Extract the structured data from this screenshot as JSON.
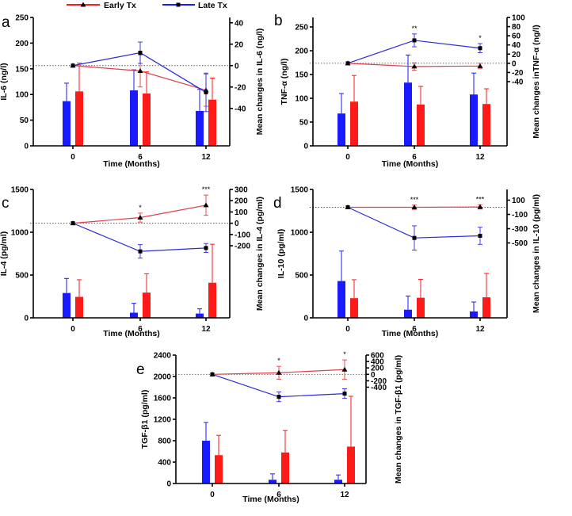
{
  "legend": {
    "early_label": "Early Tx",
    "late_label": "Late Tx",
    "early_color": "#ff1a1a",
    "late_color": "#1a1aff",
    "early_line_color": "#e0404a",
    "late_line_color": "#2a2ad8"
  },
  "chart_data": [
    {
      "type": "bar+line",
      "panel_label": "a",
      "xlabel": "Time (Months)",
      "ylabel": "IL-6 (ng/l)",
      "y2label": "Mean changes in IL-6 (ng/l)",
      "categories": [
        "0",
        "6",
        "12"
      ],
      "ylim": [
        0,
        250
      ],
      "yticks": [
        "0",
        "50",
        "100",
        "150",
        "200",
        "250"
      ],
      "y2lim": [
        -75,
        45
      ],
      "y2ticks": [
        "-40",
        "-20",
        "0",
        "20",
        "40"
      ],
      "bars": {
        "late": {
          "values": [
            87,
            108,
            68
          ],
          "errors": [
            35,
            40,
            42
          ]
        },
        "early": {
          "values": [
            106,
            102,
            90
          ],
          "errors": [
            55,
            42,
            42
          ]
        }
      },
      "lines": {
        "early": {
          "values": [
            0,
            -5,
            -23
          ],
          "errors": [
            0,
            15,
            15
          ]
        },
        "late": {
          "values": [
            0,
            12,
            -25
          ],
          "errors": [
            0,
            10,
            18
          ]
        }
      },
      "significance": {
        "early": [
          "",
          "",
          ""
        ],
        "late": [
          "",
          "",
          ""
        ]
      }
    },
    {
      "type": "bar+line",
      "panel_label": "b",
      "xlabel": "Time (Months)",
      "ylabel": "TNF-α (ng/l)",
      "y2label": "Mean changes inTNF-α (ng/l)",
      "categories": [
        "0",
        "6",
        "12"
      ],
      "ylim": [
        0,
        270
      ],
      "yticks": [
        "0",
        "50",
        "100",
        "150",
        "200",
        "250"
      ],
      "y2lim": [
        -180,
        100
      ],
      "y2ticks": [
        "-40",
        "-20",
        "0",
        "20",
        "40",
        "60",
        "80",
        "100"
      ],
      "bars": {
        "late": {
          "values": [
            68,
            133,
            108
          ],
          "errors": [
            42,
            58,
            45
          ]
        },
        "early": {
          "values": [
            93,
            87,
            88
          ],
          "errors": [
            55,
            38,
            32
          ]
        }
      },
      "lines": {
        "early": {
          "values": [
            0,
            -7,
            -6
          ],
          "errors": [
            0,
            8,
            6
          ]
        },
        "late": {
          "values": [
            0,
            50,
            33
          ],
          "errors": [
            0,
            14,
            10
          ]
        }
      },
      "significance": {
        "early": [
          "",
          "",
          ""
        ],
        "late": [
          "",
          "**",
          "*"
        ]
      }
    },
    {
      "type": "bar+line",
      "panel_label": "c",
      "xlabel": "Time (Months)",
      "ylabel": "IL-4 (pg/ml)",
      "y2label": "Mean changes in IL-4 (pg/ml)",
      "categories": [
        "0",
        "6",
        "12"
      ],
      "ylim": [
        0,
        1500
      ],
      "yticks": [
        "0",
        "500",
        "1000",
        "1500"
      ],
      "y2lim": [
        -840,
        300
      ],
      "y2ticks": [
        "-200",
        "-100",
        "0",
        "100",
        "200",
        "300"
      ],
      "bars": {
        "late": {
          "values": [
            290,
            60,
            50
          ],
          "errors": [
            170,
            110,
            55
          ]
        },
        "early": {
          "values": [
            245,
            295,
            410
          ],
          "errors": [
            200,
            220,
            450
          ]
        }
      },
      "lines": {
        "early": {
          "values": [
            0,
            50,
            160
          ],
          "errors": [
            0,
            40,
            90
          ]
        },
        "late": {
          "values": [
            0,
            -250,
            -220
          ],
          "errors": [
            0,
            60,
            40
          ]
        }
      },
      "significance": {
        "early": [
          "",
          "*",
          "***"
        ],
        "late": [
          "",
          "",
          ""
        ]
      }
    },
    {
      "type": "bar+line",
      "panel_label": "d",
      "xlabel": "Time (Months)",
      "ylabel": "IL-10 (pg/ml)",
      "y2label": "Mean changes in IL-10 (pg/ml)",
      "categories": [
        "0",
        "6",
        "12"
      ],
      "ylim": [
        0,
        1500
      ],
      "yticks": [
        "0",
        "500",
        "1000",
        "1500"
      ],
      "y2lim": [
        -1550,
        250
      ],
      "y2ticks": [
        "-500",
        "-300",
        "-100",
        "100"
      ],
      "bars": {
        "late": {
          "values": [
            430,
            95,
            75
          ],
          "errors": [
            350,
            160,
            110
          ]
        },
        "early": {
          "values": [
            230,
            235,
            240
          ],
          "errors": [
            215,
            215,
            280
          ]
        }
      },
      "lines": {
        "early": {
          "values": [
            0,
            0,
            5
          ],
          "errors": [
            0,
            30,
            30
          ]
        },
        "late": {
          "values": [
            0,
            -430,
            -400
          ],
          "errors": [
            0,
            170,
            120
          ]
        }
      },
      "significance": {
        "early": [
          "",
          "***",
          "***"
        ],
        "late": [
          "",
          "",
          ""
        ]
      }
    },
    {
      "type": "bar+line",
      "panel_label": "e",
      "xlabel": "Time (Months)",
      "ylabel": "TGF-β1 (pg/ml)",
      "y2label": "Mean changes in TGF-β1 (pg/ml)",
      "categories": [
        "0",
        "6",
        "12"
      ],
      "ylim": [
        0,
        2400
      ],
      "yticks": [
        "0",
        "400",
        "800",
        "1200",
        "1600",
        "2000",
        "2400"
      ],
      "y2lim": [
        -3400,
        600
      ],
      "y2ticks": [
        "-400",
        "-200",
        "0",
        "200",
        "400",
        "600"
      ],
      "bars": {
        "late": {
          "values": [
            800,
            70,
            70
          ],
          "errors": [
            340,
            110,
            90
          ]
        },
        "early": {
          "values": [
            530,
            580,
            690
          ],
          "errors": [
            370,
            410,
            940
          ]
        }
      },
      "lines": {
        "early": {
          "values": [
            0,
            50,
            150
          ],
          "errors": [
            0,
            200,
            300
          ]
        },
        "late": {
          "values": [
            0,
            -700,
            -600
          ],
          "errors": [
            0,
            150,
            150
          ]
        }
      },
      "significance": {
        "early": [
          "",
          "*",
          "*"
        ],
        "late": [
          "",
          "",
          ""
        ]
      }
    }
  ]
}
